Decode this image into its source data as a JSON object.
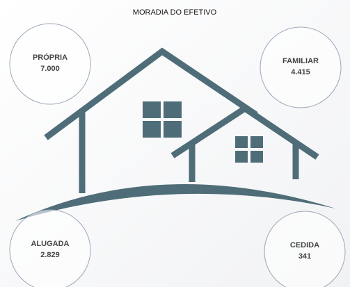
{
  "header": {
    "title": "MORADIA DO EFETIVO"
  },
  "items": [
    {
      "label": "PRÓPRIA",
      "value": "7.000"
    },
    {
      "label": "FAMILIAR",
      "value": "4.415"
    },
    {
      "label": "ALUGADA",
      "value": "2.829"
    },
    {
      "label": "CEDIDA",
      "value": "341"
    }
  ]
}
